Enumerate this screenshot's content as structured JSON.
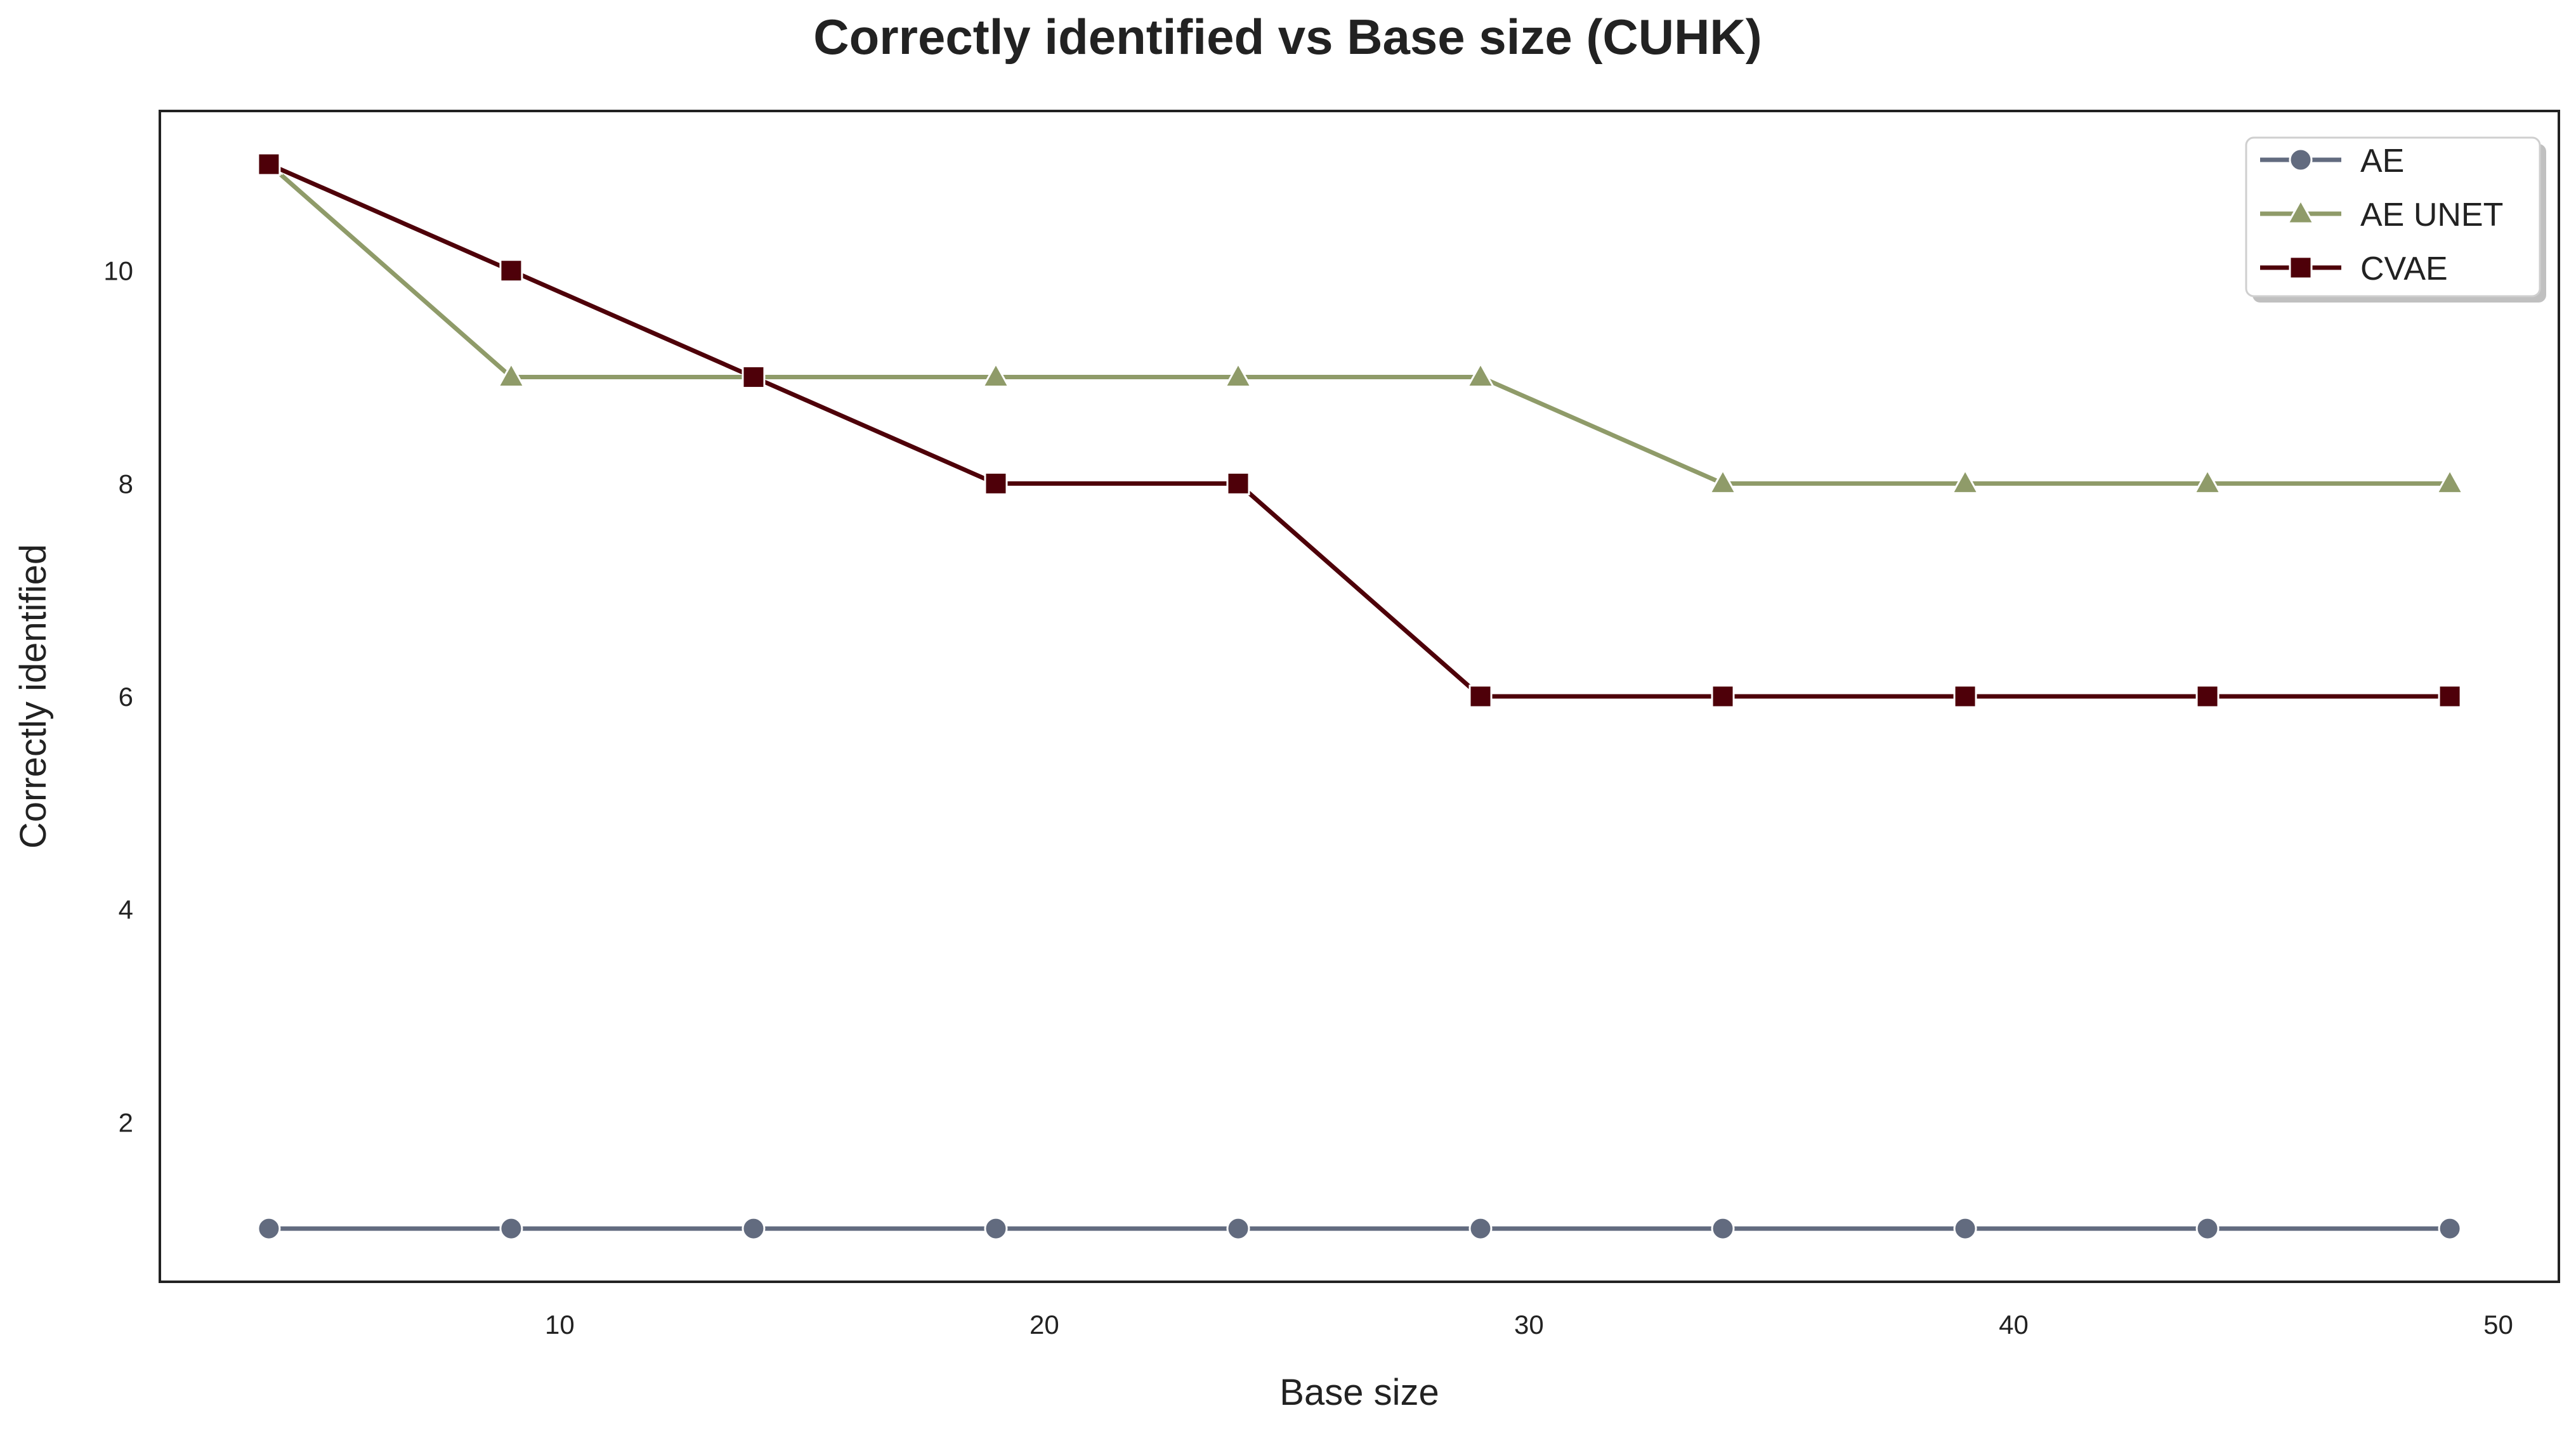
{
  "chart_data": {
    "type": "line",
    "title": "Correctly identified vs Base size (CUHK)",
    "xlabel": "Base size",
    "ylabel": "Correctly identified",
    "x": [
      4,
      9,
      14,
      19,
      24,
      29,
      34,
      39,
      44,
      49
    ],
    "xlim": [
      1.75,
      51.25
    ],
    "ylim": [
      0.5,
      11.5
    ],
    "xticks": [
      10,
      20,
      30,
      40,
      50
    ],
    "yticks": [
      2,
      4,
      6,
      8,
      10
    ],
    "grid": false,
    "legend_position": "top-right",
    "series": [
      {
        "name": "AE",
        "color": "#626b7f",
        "marker": "circle",
        "values": [
          1,
          1,
          1,
          1,
          1,
          1,
          1,
          1,
          1,
          1
        ]
      },
      {
        "name": "AE UNET",
        "color": "#8f9b69",
        "marker": "triangle",
        "values": [
          11,
          9,
          9,
          9,
          9,
          9,
          8,
          8,
          8,
          8
        ]
      },
      {
        "name": "CVAE",
        "color": "#4e0009",
        "marker": "square",
        "values": [
          11,
          10,
          9,
          8,
          8,
          6,
          6,
          6,
          6,
          6
        ]
      }
    ]
  }
}
